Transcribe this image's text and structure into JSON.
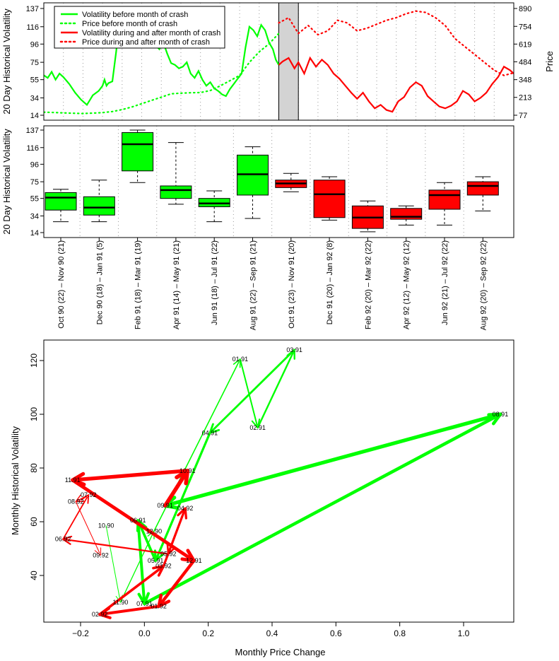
{
  "chart_data": [
    {
      "type": "line",
      "ylabel_left": "20 Day Historical Volatility",
      "ylabel_right": "Price",
      "left_ticks": [
        "14",
        "34",
        "55",
        "75",
        "96",
        "116",
        "137"
      ],
      "right_ticks": [
        "77",
        "213",
        "348",
        "484",
        "619",
        "754",
        "890"
      ],
      "ylim_left": [
        14,
        137
      ],
      "ylim_right": [
        77,
        890
      ],
      "months": [
        "Oct 90",
        "Nov 90",
        "Dec 90",
        "Jan 91",
        "Feb 91",
        "Mar 91",
        "Apr 91",
        "May 91",
        "Jun 91",
        "Jul 91",
        "Aug 91",
        "Sep 91",
        "Oct 91",
        "Nov 91",
        "Dec 91",
        "Jan 92",
        "Feb 92",
        "Mar 92",
        "Apr 92",
        "May 92",
        "Jun 92",
        "Jul 92",
        "Aug 92",
        "Sep 92"
      ],
      "crash_month": "Oct 91",
      "legend": [
        {
          "label": "Volatility before month of crash",
          "color": "#00ff00",
          "style": "solid"
        },
        {
          "label": "Price before month of crash",
          "color": "#00ff00",
          "style": "dotted"
        },
        {
          "label": "Volatility during and after month of crash",
          "color": "#ff0000",
          "style": "solid"
        },
        {
          "label": "Price during and after month of crash",
          "color": "#ff0000",
          "style": "dotted"
        }
      ],
      "legend_position": "top-left",
      "series": [
        {
          "kind": "volatility",
          "phase": "before",
          "color": "#00ff00",
          "x": [
            0,
            0.2,
            0.4,
            0.6,
            0.8,
            1.0,
            1.3,
            1.6,
            1.9,
            2.2,
            2.5,
            2.8,
            3.0,
            3.1,
            3.2,
            3.3,
            3.5,
            3.7,
            3.9,
            4.1,
            4.3,
            4.5,
            4.7,
            4.9,
            5.1,
            5.3,
            5.5,
            5.7,
            5.9,
            6.1,
            6.3,
            6.5,
            6.7,
            6.9,
            7.1,
            7.3,
            7.5,
            7.7,
            7.9,
            8.1,
            8.3,
            8.5,
            8.7,
            8.9,
            9.1,
            9.3,
            9.5,
            9.7,
            9.9,
            10.1,
            10.3,
            10.5,
            10.7,
            10.9,
            11.1,
            11.3,
            11.5,
            11.7,
            11.85,
            12.0
          ],
          "y": [
            60,
            57,
            64,
            55,
            62,
            58,
            50,
            40,
            32,
            26,
            37,
            42,
            48,
            55,
            48,
            51,
            53,
            88,
            137,
            128,
            132,
            98,
            120,
            105,
            95,
            110,
            108,
            95,
            90,
            98,
            85,
            74,
            72,
            68,
            70,
            75,
            62,
            57,
            65,
            55,
            48,
            52,
            45,
            42,
            38,
            36,
            44,
            50,
            56,
            62,
            92,
            116,
            112,
            105,
            118,
            112,
            98,
            90,
            78,
            72
          ]
        },
        {
          "kind": "volatility",
          "phase": "during_after",
          "color": "#ff0000",
          "x": [
            12.0,
            12.2,
            12.5,
            12.8,
            13.0,
            13.3,
            13.6,
            13.9,
            14.2,
            14.5,
            14.8,
            15.1,
            15.4,
            15.7,
            16.0,
            16.3,
            16.6,
            16.9,
            17.2,
            17.5,
            17.8,
            18.1,
            18.4,
            18.7,
            19.0,
            19.3,
            19.6,
            19.9,
            20.2,
            20.5,
            20.8,
            21.1,
            21.4,
            21.7,
            22.0,
            22.3,
            22.6,
            22.9,
            23.2,
            23.5,
            23.8,
            24.0
          ],
          "y": [
            72,
            76,
            80,
            68,
            75,
            62,
            80,
            70,
            78,
            72,
            62,
            56,
            48,
            40,
            33,
            40,
            30,
            22,
            26,
            20,
            18,
            30,
            35,
            46,
            52,
            48,
            36,
            30,
            24,
            22,
            25,
            30,
            42,
            38,
            30,
            34,
            40,
            50,
            58,
            70,
            66,
            62
          ]
        },
        {
          "kind": "price",
          "phase": "before",
          "color": "#00ff00",
          "x": [
            0,
            0.5,
            1.0,
            1.5,
            2.0,
            2.5,
            3.0,
            3.5,
            4.0,
            4.5,
            5.0,
            5.5,
            6.0,
            6.5,
            7.0,
            7.5,
            8.0,
            8.5,
            9.0,
            9.5,
            10.0,
            10.5,
            11.0,
            11.5,
            12.0
          ],
          "y": [
            100,
            98,
            95,
            92,
            90,
            93,
            97,
            105,
            120,
            140,
            165,
            190,
            215,
            240,
            245,
            248,
            250,
            265,
            300,
            340,
            380,
            480,
            560,
            620,
            700
          ]
        },
        {
          "kind": "price",
          "phase": "during_after",
          "color": "#ff0000",
          "x": [
            12.0,
            12.5,
            13.0,
            13.5,
            14.0,
            14.5,
            15.0,
            15.5,
            16.0,
            16.5,
            17.0,
            17.5,
            18.0,
            18.5,
            19.0,
            19.5,
            20.0,
            20.5,
            21.0,
            21.5,
            22.0,
            22.5,
            23.0,
            23.5,
            24.0
          ],
          "y": [
            780,
            820,
            700,
            760,
            690,
            720,
            800,
            780,
            720,
            740,
            770,
            800,
            820,
            850,
            870,
            860,
            820,
            760,
            660,
            600,
            540,
            480,
            420,
            380,
            400
          ]
        }
      ]
    },
    {
      "type": "box",
      "ylabel": "20 Day Historical Volatility",
      "ticks": [
        "14",
        "34",
        "55",
        "75",
        "96",
        "116",
        "137"
      ],
      "ylim": [
        14,
        137
      ],
      "categories": [
        "Oct 90 (22) – Nov 90 (21)",
        "Dec 90 (18) – Jan 91 (5)",
        "Feb 91 (18) – Mar 91 (19)",
        "Apr 91 (14) – May 91 (21)",
        "Jun 91 (18) – Jul 91 (22)",
        "Aug 91 (22) – Sep 91 (21)",
        "Oct 91 (23) – Nov 91 (20)",
        "Dec 91 (20) – Jan 92 (8)",
        "Feb 92 (20) – Mar 92 (22)",
        "Apr 92 (12) – May 92 (12)",
        "Jun 92 (21) – Jul 92 (22)",
        "Aug 92 (20) – Sep 92 (22)"
      ],
      "boxes": [
        {
          "min": 27,
          "q1": 41,
          "median": 56,
          "q3": 62,
          "max": 66,
          "color": "#00ff00"
        },
        {
          "min": 27,
          "q1": 35,
          "median": 44,
          "q3": 57,
          "max": 77,
          "color": "#00ff00"
        },
        {
          "min": 74,
          "q1": 88,
          "median": 120,
          "q3": 134,
          "max": 137,
          "color": "#00ff00"
        },
        {
          "min": 48,
          "q1": 55,
          "median": 65,
          "q3": 70,
          "max": 122,
          "color": "#00ff00"
        },
        {
          "min": 27,
          "q1": 45,
          "median": 49,
          "q3": 55,
          "max": 64,
          "color": "#00ff00"
        },
        {
          "min": 31,
          "q1": 59,
          "median": 84,
          "q3": 107,
          "max": 117,
          "color": "#00ff00"
        },
        {
          "min": 63,
          "q1": 68,
          "median": 73,
          "q3": 77,
          "max": 85,
          "color": "#ff0000"
        },
        {
          "min": 29,
          "q1": 32,
          "median": 60,
          "q3": 77,
          "max": 81,
          "color": "#ff0000"
        },
        {
          "min": 15,
          "q1": 19,
          "median": 32,
          "q3": 46,
          "max": 52,
          "color": "#ff0000"
        },
        {
          "min": 23,
          "q1": 30,
          "median": 33,
          "q3": 43,
          "max": 46,
          "color": "#ff0000"
        },
        {
          "min": 23,
          "q1": 42,
          "median": 59,
          "q3": 65,
          "max": 74,
          "color": "#ff0000"
        },
        {
          "min": 40,
          "q1": 59,
          "median": 70,
          "q3": 75,
          "max": 81,
          "color": "#ff0000"
        }
      ]
    },
    {
      "type": "scatter",
      "xlabel": "Monthly Price Change",
      "ylabel": "Monthly Historical Volatility",
      "xticks": [
        "−0.2",
        "0.0",
        "0.2",
        "0.4",
        "0.6",
        "0.8",
        "1.0"
      ],
      "xtick_values": [
        -0.2,
        0,
        0.2,
        0.4,
        0.6,
        0.8,
        1.0
      ],
      "yticks": [
        "40",
        "60",
        "80",
        "100",
        "120"
      ],
      "ytick_values": [
        40,
        60,
        80,
        100,
        120
      ],
      "xlim": [
        -0.31,
        1.18
      ],
      "ylim": [
        23,
        129
      ],
      "points": [
        {
          "label": "10.90",
          "x": -0.12,
          "y": 58.5
        },
        {
          "label": "11.90",
          "x": -0.075,
          "y": 30
        },
        {
          "label": "12.90",
          "x": 0.03,
          "y": 56.5
        },
        {
          "label": "01.91",
          "x": 0.3,
          "y": 120.5
        },
        {
          "label": "02.91",
          "x": 0.355,
          "y": 95
        },
        {
          "label": "03.91",
          "x": 0.47,
          "y": 124
        },
        {
          "label": "04.91",
          "x": 0.205,
          "y": 93
        },
        {
          "label": "05.91",
          "x": 0.035,
          "y": 45.5
        },
        {
          "label": "06.91",
          "x": -0.02,
          "y": 60.5
        },
        {
          "label": "07.91",
          "x": 0.0,
          "y": 29.5
        },
        {
          "label": "08.91",
          "x": 1.115,
          "y": 100
        },
        {
          "label": "09.91",
          "x": 0.065,
          "y": 66
        },
        {
          "label": "10.91",
          "x": 0.135,
          "y": 79
        },
        {
          "label": "11.91",
          "x": -0.225,
          "y": 75.5
        },
        {
          "label": "12.91",
          "x": 0.155,
          "y": 45.5
        },
        {
          "label": "01.92",
          "x": 0.045,
          "y": 28.5
        },
        {
          "label": "02.92",
          "x": -0.14,
          "y": 25.5
        },
        {
          "label": "03.92",
          "x": 0.06,
          "y": 43.5
        },
        {
          "label": "04.92",
          "x": 0.128,
          "y": 65
        },
        {
          "label": "05.92",
          "x": 0.075,
          "y": 48
        },
        {
          "label": "06.92",
          "x": -0.255,
          "y": 53.5
        },
        {
          "label": "07.92",
          "x": -0.175,
          "y": 70
        },
        {
          "label": "08.92",
          "x": -0.215,
          "y": 67.5
        },
        {
          "label": "09.92",
          "x": -0.137,
          "y": 47.5
        }
      ],
      "arrows": [
        {
          "from": "10.90",
          "to": "11.90",
          "color": "#00ff00",
          "weight": 1
        },
        {
          "from": "11.90",
          "to": "12.90",
          "color": "#00ff00",
          "weight": 1.3
        },
        {
          "from": "12.90",
          "to": "01.91",
          "color": "#00ff00",
          "weight": 1.6
        },
        {
          "from": "01.91",
          "to": "02.91",
          "color": "#00ff00",
          "weight": 2
        },
        {
          "from": "02.91",
          "to": "03.91",
          "color": "#00ff00",
          "weight": 2.4
        },
        {
          "from": "03.91",
          "to": "04.91",
          "color": "#00ff00",
          "weight": 2.8
        },
        {
          "from": "04.91",
          "to": "05.91",
          "color": "#00ff00",
          "weight": 3.2
        },
        {
          "from": "05.91",
          "to": "06.91",
          "color": "#00ff00",
          "weight": 3.6
        },
        {
          "from": "06.91",
          "to": "07.91",
          "color": "#00ff00",
          "weight": 4
        },
        {
          "from": "07.91",
          "to": "08.91",
          "color": "#00ff00",
          "weight": 4.6
        },
        {
          "from": "08.91",
          "to": "09.91",
          "color": "#00ff00",
          "weight": 5.2
        },
        {
          "from": "09.91",
          "to": "10.91",
          "color": "#ff0000",
          "weight": 5.6
        },
        {
          "from": "10.91",
          "to": "11.91",
          "color": "#ff0000",
          "weight": 5.2
        },
        {
          "from": "11.91",
          "to": "12.91",
          "color": "#ff0000",
          "weight": 4.8
        },
        {
          "from": "12.91",
          "to": "01.92",
          "color": "#ff0000",
          "weight": 4.4
        },
        {
          "from": "01.92",
          "to": "02.92",
          "color": "#ff0000",
          "weight": 4
        },
        {
          "from": "02.92",
          "to": "03.92",
          "color": "#ff0000",
          "weight": 3.6
        },
        {
          "from": "03.92",
          "to": "04.92",
          "color": "#ff0000",
          "weight": 3.2
        },
        {
          "from": "04.92",
          "to": "05.92",
          "color": "#ff0000",
          "weight": 2.6
        },
        {
          "from": "05.92",
          "to": "06.92",
          "color": "#ff0000",
          "weight": 2.2
        },
        {
          "from": "06.92",
          "to": "07.92",
          "color": "#ff0000",
          "weight": 1.8
        },
        {
          "from": "07.92",
          "to": "08.92",
          "color": "#ff0000",
          "weight": 1.4
        },
        {
          "from": "08.92",
          "to": "09.92",
          "color": "#ff0000",
          "weight": 1
        }
      ]
    }
  ]
}
